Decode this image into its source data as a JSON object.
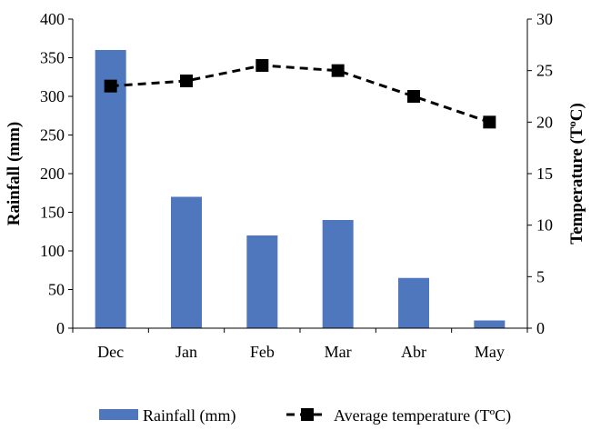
{
  "chart_data": {
    "type": "bar+line",
    "categories": [
      "Dec",
      "Jan",
      "Feb",
      "Mar",
      "Abr",
      "May"
    ],
    "series": [
      {
        "name": "Rainfall (mm)",
        "type": "bar",
        "axis": "left",
        "values": [
          360,
          170,
          120,
          140,
          65,
          10
        ],
        "color": "#4f77be"
      },
      {
        "name": "Average temperature (TºC)",
        "type": "line",
        "axis": "right",
        "style": "dashed",
        "marker": "square",
        "values": [
          23.5,
          24,
          25.5,
          25,
          22.5,
          20
        ],
        "color": "#000000"
      }
    ],
    "ylabel_left": "Rainfall (mm)",
    "ylabel_right": "Temperature (TºC)",
    "ylim_left": [
      0,
      400
    ],
    "ylim_right": [
      0,
      30
    ],
    "yticks_left": [
      0,
      50,
      100,
      150,
      200,
      250,
      300,
      350,
      400
    ],
    "yticks_right": [
      0,
      5,
      10,
      15,
      20,
      25,
      30
    ],
    "legend_position": "bottom",
    "grid": false
  }
}
